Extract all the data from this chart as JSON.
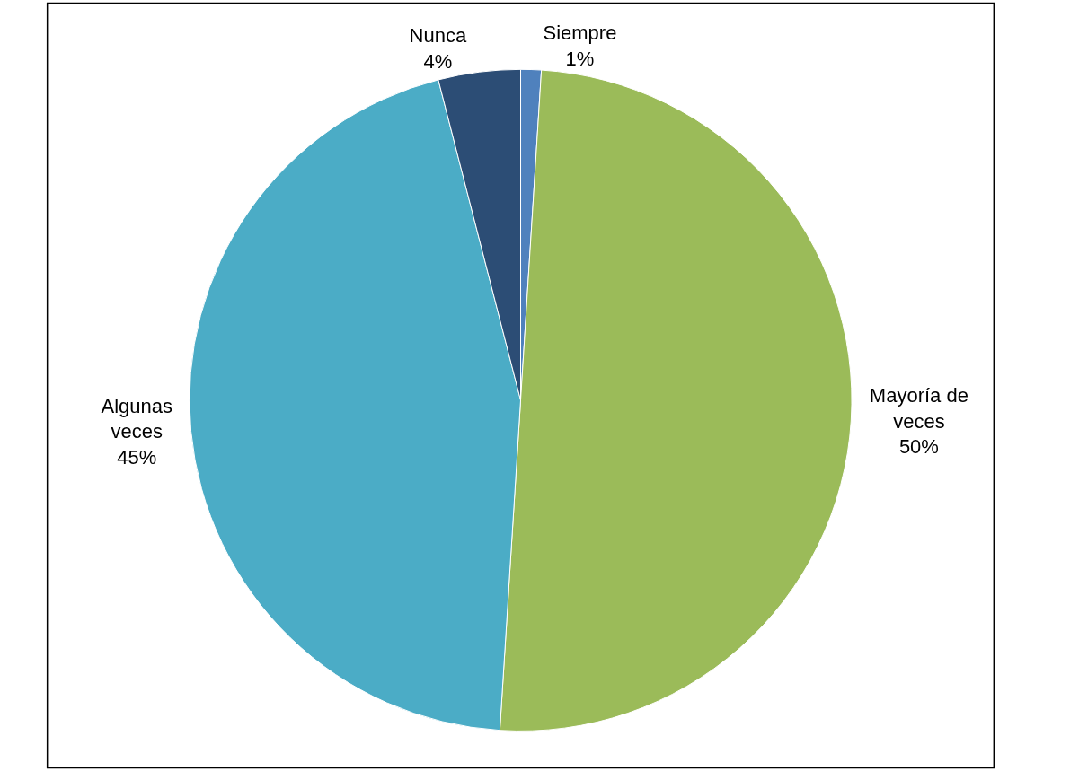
{
  "chart_data": {
    "type": "pie",
    "categories": [
      "Siempre",
      "Mayoría de veces",
      "Algunas veces",
      "Nunca"
    ],
    "values": [
      1,
      50,
      45,
      4
    ],
    "colors": [
      "#4f81bd",
      "#9bbb59",
      "#4bacc6",
      "#2c4d75"
    ],
    "value_labels": [
      "1%",
      "50%",
      "45%",
      "4%"
    ],
    "legend": false
  }
}
